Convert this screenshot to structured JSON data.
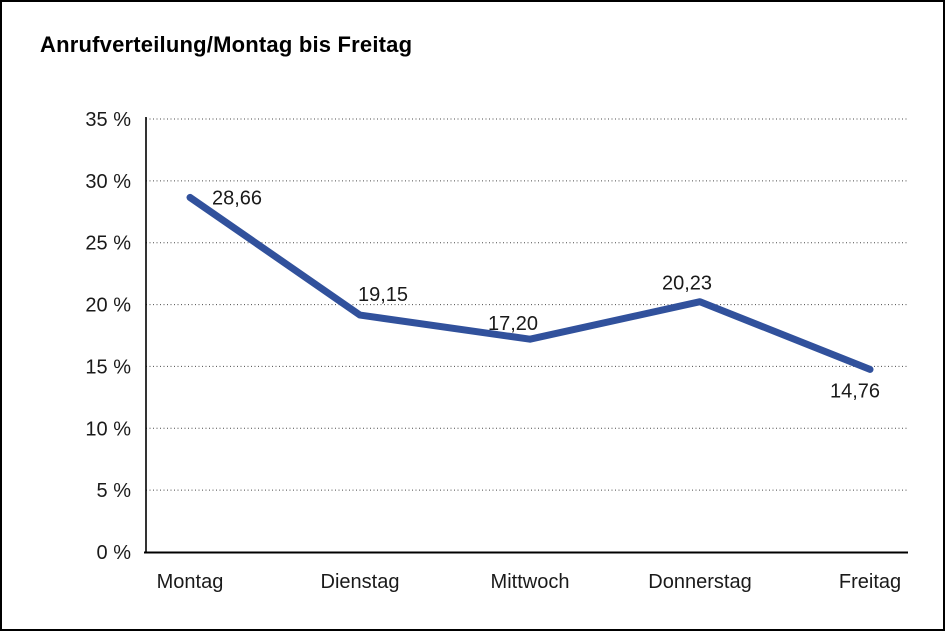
{
  "header": {
    "title": "Anrufverteilung/Montag bis Freitag"
  },
  "chart_data": {
    "type": "line",
    "title": "Anrufverteilung/Montag bis Freitag",
    "categories": [
      "Montag",
      "Dienstag",
      "Mittwoch",
      "Donnerstag",
      "Freitag"
    ],
    "series": [
      {
        "name": "Anrufverteilung",
        "values": [
          28.66,
          19.15,
          17.2,
          20.23,
          14.76
        ],
        "point_labels": [
          "28,66",
          "19,15",
          "17,20",
          "20,23",
          "14,76"
        ]
      }
    ],
    "xlabel": "",
    "ylabel": "",
    "ylim": [
      0,
      35
    ],
    "y_tick_step": 5,
    "y_tick_labels": [
      "0 %",
      "5 %",
      "10 %",
      "15 %",
      "20 %",
      "25 %",
      "30 %",
      "35 %"
    ],
    "grid": "horizontal-dotted",
    "legend": "none",
    "line_color": "#31519C",
    "axis_color": "#000000",
    "grid_color": "#4a4a4a",
    "label_color": "#1a1a1a"
  }
}
